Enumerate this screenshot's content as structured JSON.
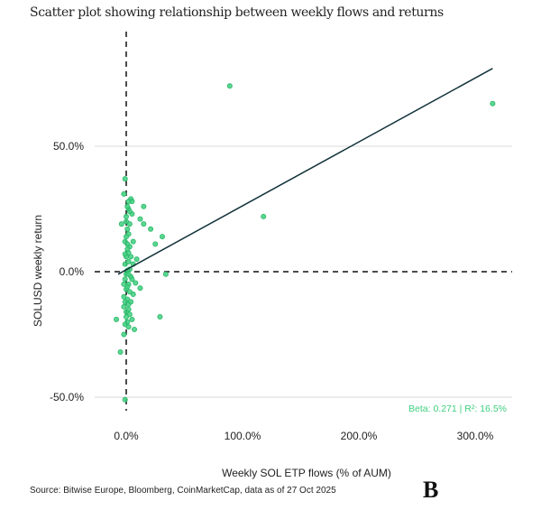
{
  "title": "Scatter plot showing relationship between weekly flows and returns",
  "source": "Source: Bitwise Europe, Bloomberg, CoinMarketCap, data as of 27 Oct 2025",
  "logo": "B",
  "chart_data": {
    "type": "scatter",
    "title": "Scatter plot showing relationship between weekly flows and returns",
    "xlabel": "Weekly SOL ETP flows (% of AUM)",
    "ylabel": "SOLUSD weekly return",
    "xlim": [
      -27,
      332
    ],
    "ylim": [
      -55,
      95
    ],
    "x_ticks": [
      {
        "v": 0,
        "label": "0.0%"
      },
      {
        "v": 100,
        "label": "100.0%"
      },
      {
        "v": 200,
        "label": "200.0%"
      },
      {
        "v": 300,
        "label": "300.0%"
      }
    ],
    "y_ticks": [
      {
        "v": 50,
        "label": "50.0%"
      },
      {
        "v": 0,
        "label": "0.0%"
      },
      {
        "v": -50,
        "label": "-50.0%"
      }
    ],
    "grid": "horizontal",
    "annotation": "Beta: 0.271 | R²: 16.5%",
    "point_color": "#3ecf7e",
    "fit_line": [
      [
        -7,
        -1
      ],
      [
        315,
        81
      ]
    ],
    "points": [
      [
        89,
        74
      ],
      [
        118,
        22
      ],
      [
        315,
        67
      ],
      [
        -1,
        37
      ],
      [
        -2,
        31
      ],
      [
        4,
        29
      ],
      [
        5,
        28
      ],
      [
        2,
        28
      ],
      [
        15,
        26
      ],
      [
        2,
        25
      ],
      [
        5,
        23
      ],
      [
        12,
        21
      ],
      [
        15,
        19
      ],
      [
        -4,
        19
      ],
      [
        21,
        17
      ],
      [
        31,
        14
      ],
      [
        25,
        11
      ],
      [
        6,
        12
      ],
      [
        -1,
        12
      ],
      [
        2,
        7.5
      ],
      [
        9,
        5
      ],
      [
        6,
        3
      ],
      [
        34,
        -1
      ],
      [
        8,
        -4.5
      ],
      [
        12,
        -6.5
      ],
      [
        6,
        -9
      ],
      [
        -2,
        -10
      ],
      [
        -2,
        -14
      ],
      [
        -8.5,
        -19
      ],
      [
        5,
        -19
      ],
      [
        29,
        -18
      ],
      [
        7,
        -23
      ],
      [
        -2,
        -25
      ],
      [
        -5,
        -32
      ],
      [
        -1,
        -51
      ],
      [
        0,
        20
      ],
      [
        1,
        17
      ],
      [
        2,
        15
      ],
      [
        0,
        14
      ],
      [
        3,
        10
      ],
      [
        1,
        9
      ],
      [
        0,
        6
      ],
      [
        2,
        4
      ],
      [
        -1,
        3
      ],
      [
        3,
        1
      ],
      [
        1,
        0.5
      ],
      [
        0,
        -1
      ],
      [
        4,
        -2
      ],
      [
        -1,
        -3
      ],
      [
        2,
        -5
      ],
      [
        0,
        -7
      ],
      [
        3,
        -8
      ],
      [
        1,
        -11
      ],
      [
        -1,
        -12
      ],
      [
        2,
        -13
      ],
      [
        0,
        -16
      ],
      [
        3,
        -17
      ],
      [
        1,
        -20
      ],
      [
        -1,
        -21
      ],
      [
        2,
        -22
      ],
      [
        0,
        22
      ],
      [
        3,
        19
      ],
      [
        1,
        11
      ],
      [
        -1,
        7
      ],
      [
        4,
        6
      ],
      [
        2,
        -1
      ],
      [
        5,
        -3
      ],
      [
        1,
        -6
      ],
      [
        -2,
        -5
      ],
      [
        4,
        -12
      ],
      [
        2,
        -15
      ],
      [
        0,
        -18
      ],
      [
        1,
        26
      ],
      [
        3,
        24
      ]
    ]
  }
}
